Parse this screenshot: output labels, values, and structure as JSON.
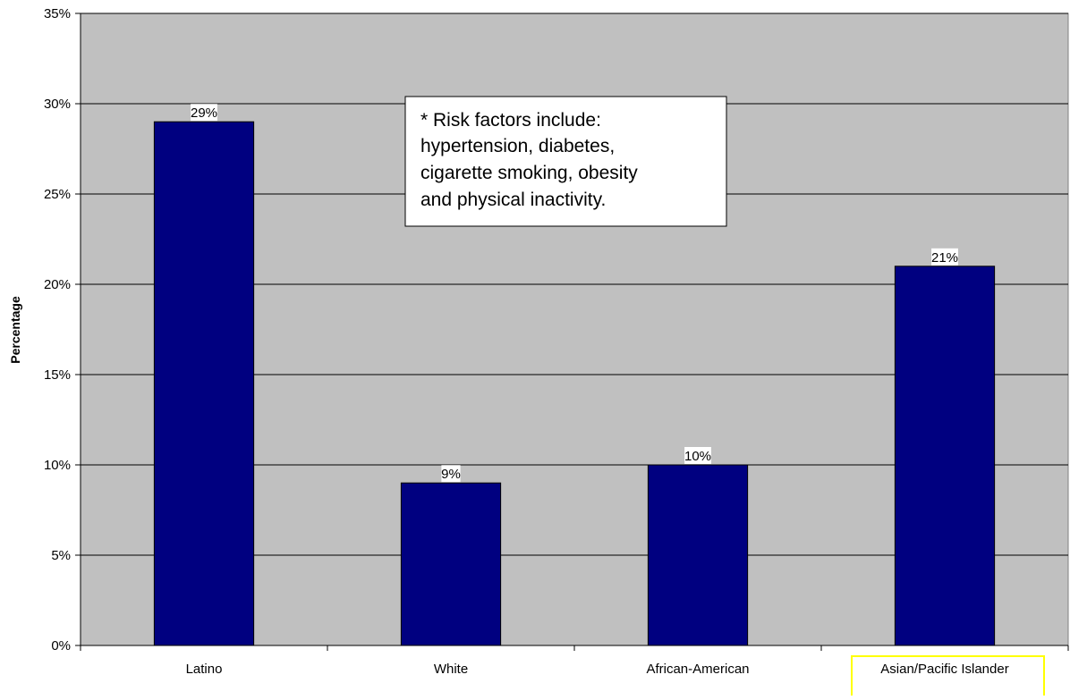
{
  "chart_data": {
    "type": "bar",
    "categories": [
      "Latino",
      "White",
      "African-American",
      "Asian/Pacific Islander"
    ],
    "values": [
      29,
      9,
      10,
      21
    ],
    "data_labels": [
      "29%",
      "9%",
      "10%",
      "21%"
    ],
    "title": "",
    "xlabel": "",
    "ylabel": "Percentage",
    "ylim": [
      0,
      35
    ],
    "yticks": [
      0,
      5,
      10,
      15,
      20,
      25,
      30,
      35
    ],
    "ytick_labels": [
      "0%",
      "5%",
      "10%",
      "15%",
      "20%",
      "25%",
      "30%",
      "35%"
    ],
    "grid": true,
    "legend": "none",
    "highlighted_category": "Asian/Pacific Islander",
    "annotation": {
      "lines": [
        "* Risk factors include:",
        "hypertension, diabetes,",
        "cigarette smoking, obesity",
        "and physical inactivity."
      ]
    },
    "colors": {
      "bar_fill": "#000080",
      "plot_background": "#c0c0c0",
      "highlight_box": "#ffff00"
    }
  }
}
